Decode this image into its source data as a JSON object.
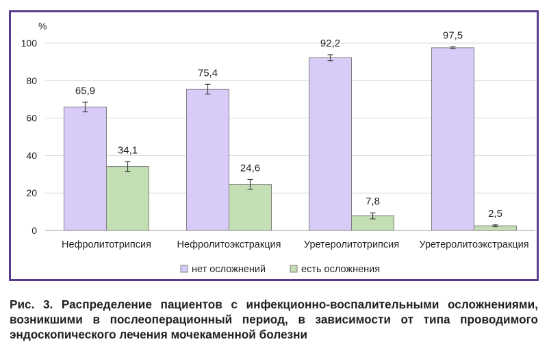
{
  "chart_data": {
    "type": "bar",
    "ylabel": "%",
    "ylim": [
      0,
      100
    ],
    "yticks": [
      0,
      20,
      40,
      60,
      80,
      100
    ],
    "grid": true,
    "legend_position": "bottom",
    "categories": [
      "Нефролитотрипсия",
      "Нефролитоэкстракция",
      "Уретеролитотрипсия",
      "Уретеролитоэкстракция"
    ],
    "series": [
      {
        "name": "нет осложнений",
        "color": "#d9cbf8",
        "values": [
          65.9,
          75.4,
          92.2,
          97.5
        ],
        "labels": [
          "65,9",
          "75,4",
          "92,2",
          "97,5"
        ],
        "error": [
          2.6,
          2.6,
          1.6,
          0.5
        ]
      },
      {
        "name": "есть осложнения",
        "color": "#c4dfb4",
        "values": [
          34.1,
          24.6,
          7.8,
          2.5
        ],
        "labels": [
          "34,1",
          "24,6",
          "7,8",
          "2,5"
        ],
        "error": [
          2.6,
          2.6,
          1.6,
          0.5
        ]
      }
    ]
  },
  "caption": "Рис. 3. Распределение пациентов с инфекционно-воспалительными осложнениями, возникшими в послеоперационный период, в зависимости от типа проводимого эндоскопического лечения мочекаменной болезни"
}
